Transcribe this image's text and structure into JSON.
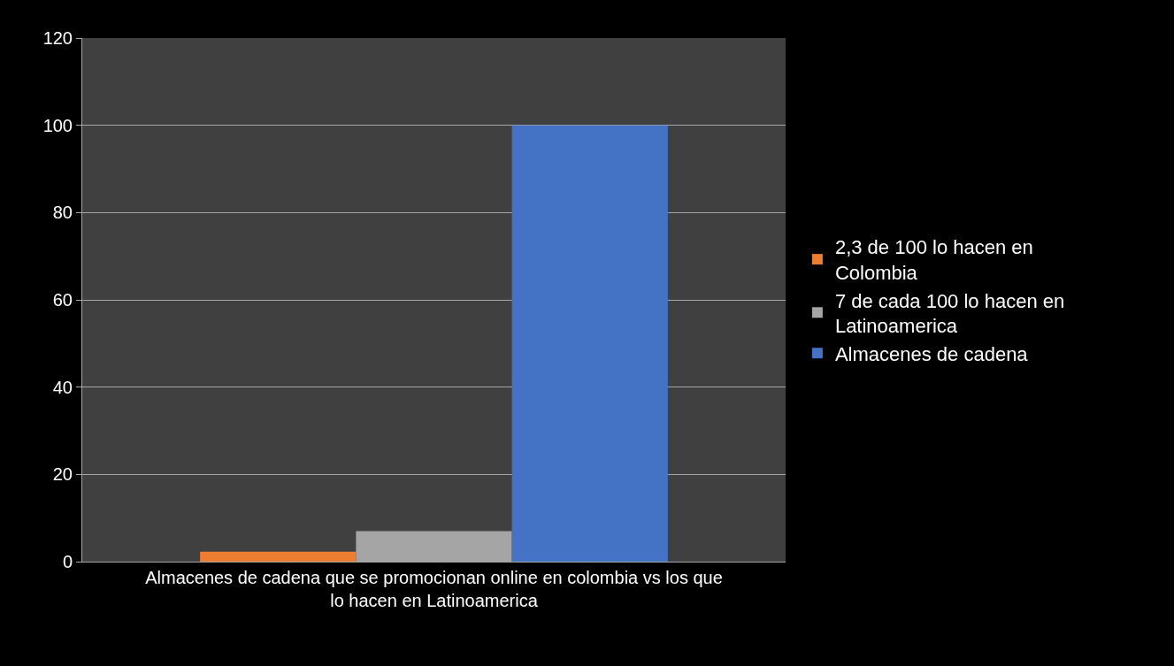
{
  "chart_data": {
    "type": "bar",
    "categories": [
      "Almacenes de cadena que se promocionan online en colombia vs los que lo hacen en Latinoamerica"
    ],
    "series": [
      {
        "name": "2,3 de 100 lo hacen en Colombia",
        "color": "#ed7d31",
        "values": [
          2.3
        ]
      },
      {
        "name": "7 de cada 100 lo hacen en Latinoamerica",
        "color": "#a5a5a5",
        "values": [
          7
        ]
      },
      {
        "name": "Almacenes de cadena",
        "color": "#4472c4",
        "values": [
          100
        ]
      }
    ],
    "ylim": [
      0,
      120
    ],
    "yticks": [
      0,
      20,
      40,
      60,
      80,
      100,
      120
    ],
    "grid": "y",
    "legend": "right"
  }
}
